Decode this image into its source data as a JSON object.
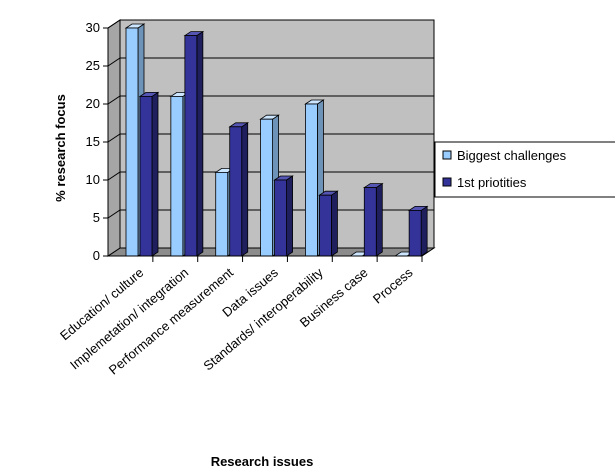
{
  "chart_data": {
    "type": "bar",
    "title": "",
    "xlabel": "Research issues",
    "ylabel": "% research focus",
    "categories": [
      "Education/ culture",
      "Implemetation/ integration",
      "Performance measurement",
      "Data issues",
      "Standards/ interoperability",
      "Business case",
      "Process"
    ],
    "series": [
      {
        "name": "Biggest challenges",
        "values": [
          30,
          21,
          11,
          18,
          20,
          0,
          0
        ]
      },
      {
        "name": "1st priotities",
        "values": [
          21,
          29,
          17,
          10,
          8,
          9,
          6
        ]
      }
    ],
    "yticks": [
      0,
      5,
      10,
      15,
      20,
      25,
      30
    ],
    "ylim": [
      0,
      30
    ],
    "grid": true,
    "legend_position": "right",
    "colors": {
      "series": [
        "#99CCFF",
        "#333399"
      ],
      "series_dark": [
        "#6E93B8",
        "#1F1F5E"
      ],
      "series_top": [
        "#CCE6FF",
        "#5555B3"
      ],
      "plot_back": "#C0C0C0",
      "plot_side": "#A6A6A6",
      "plot_floor": "#8C8C8C",
      "gridline": "#000000"
    }
  }
}
